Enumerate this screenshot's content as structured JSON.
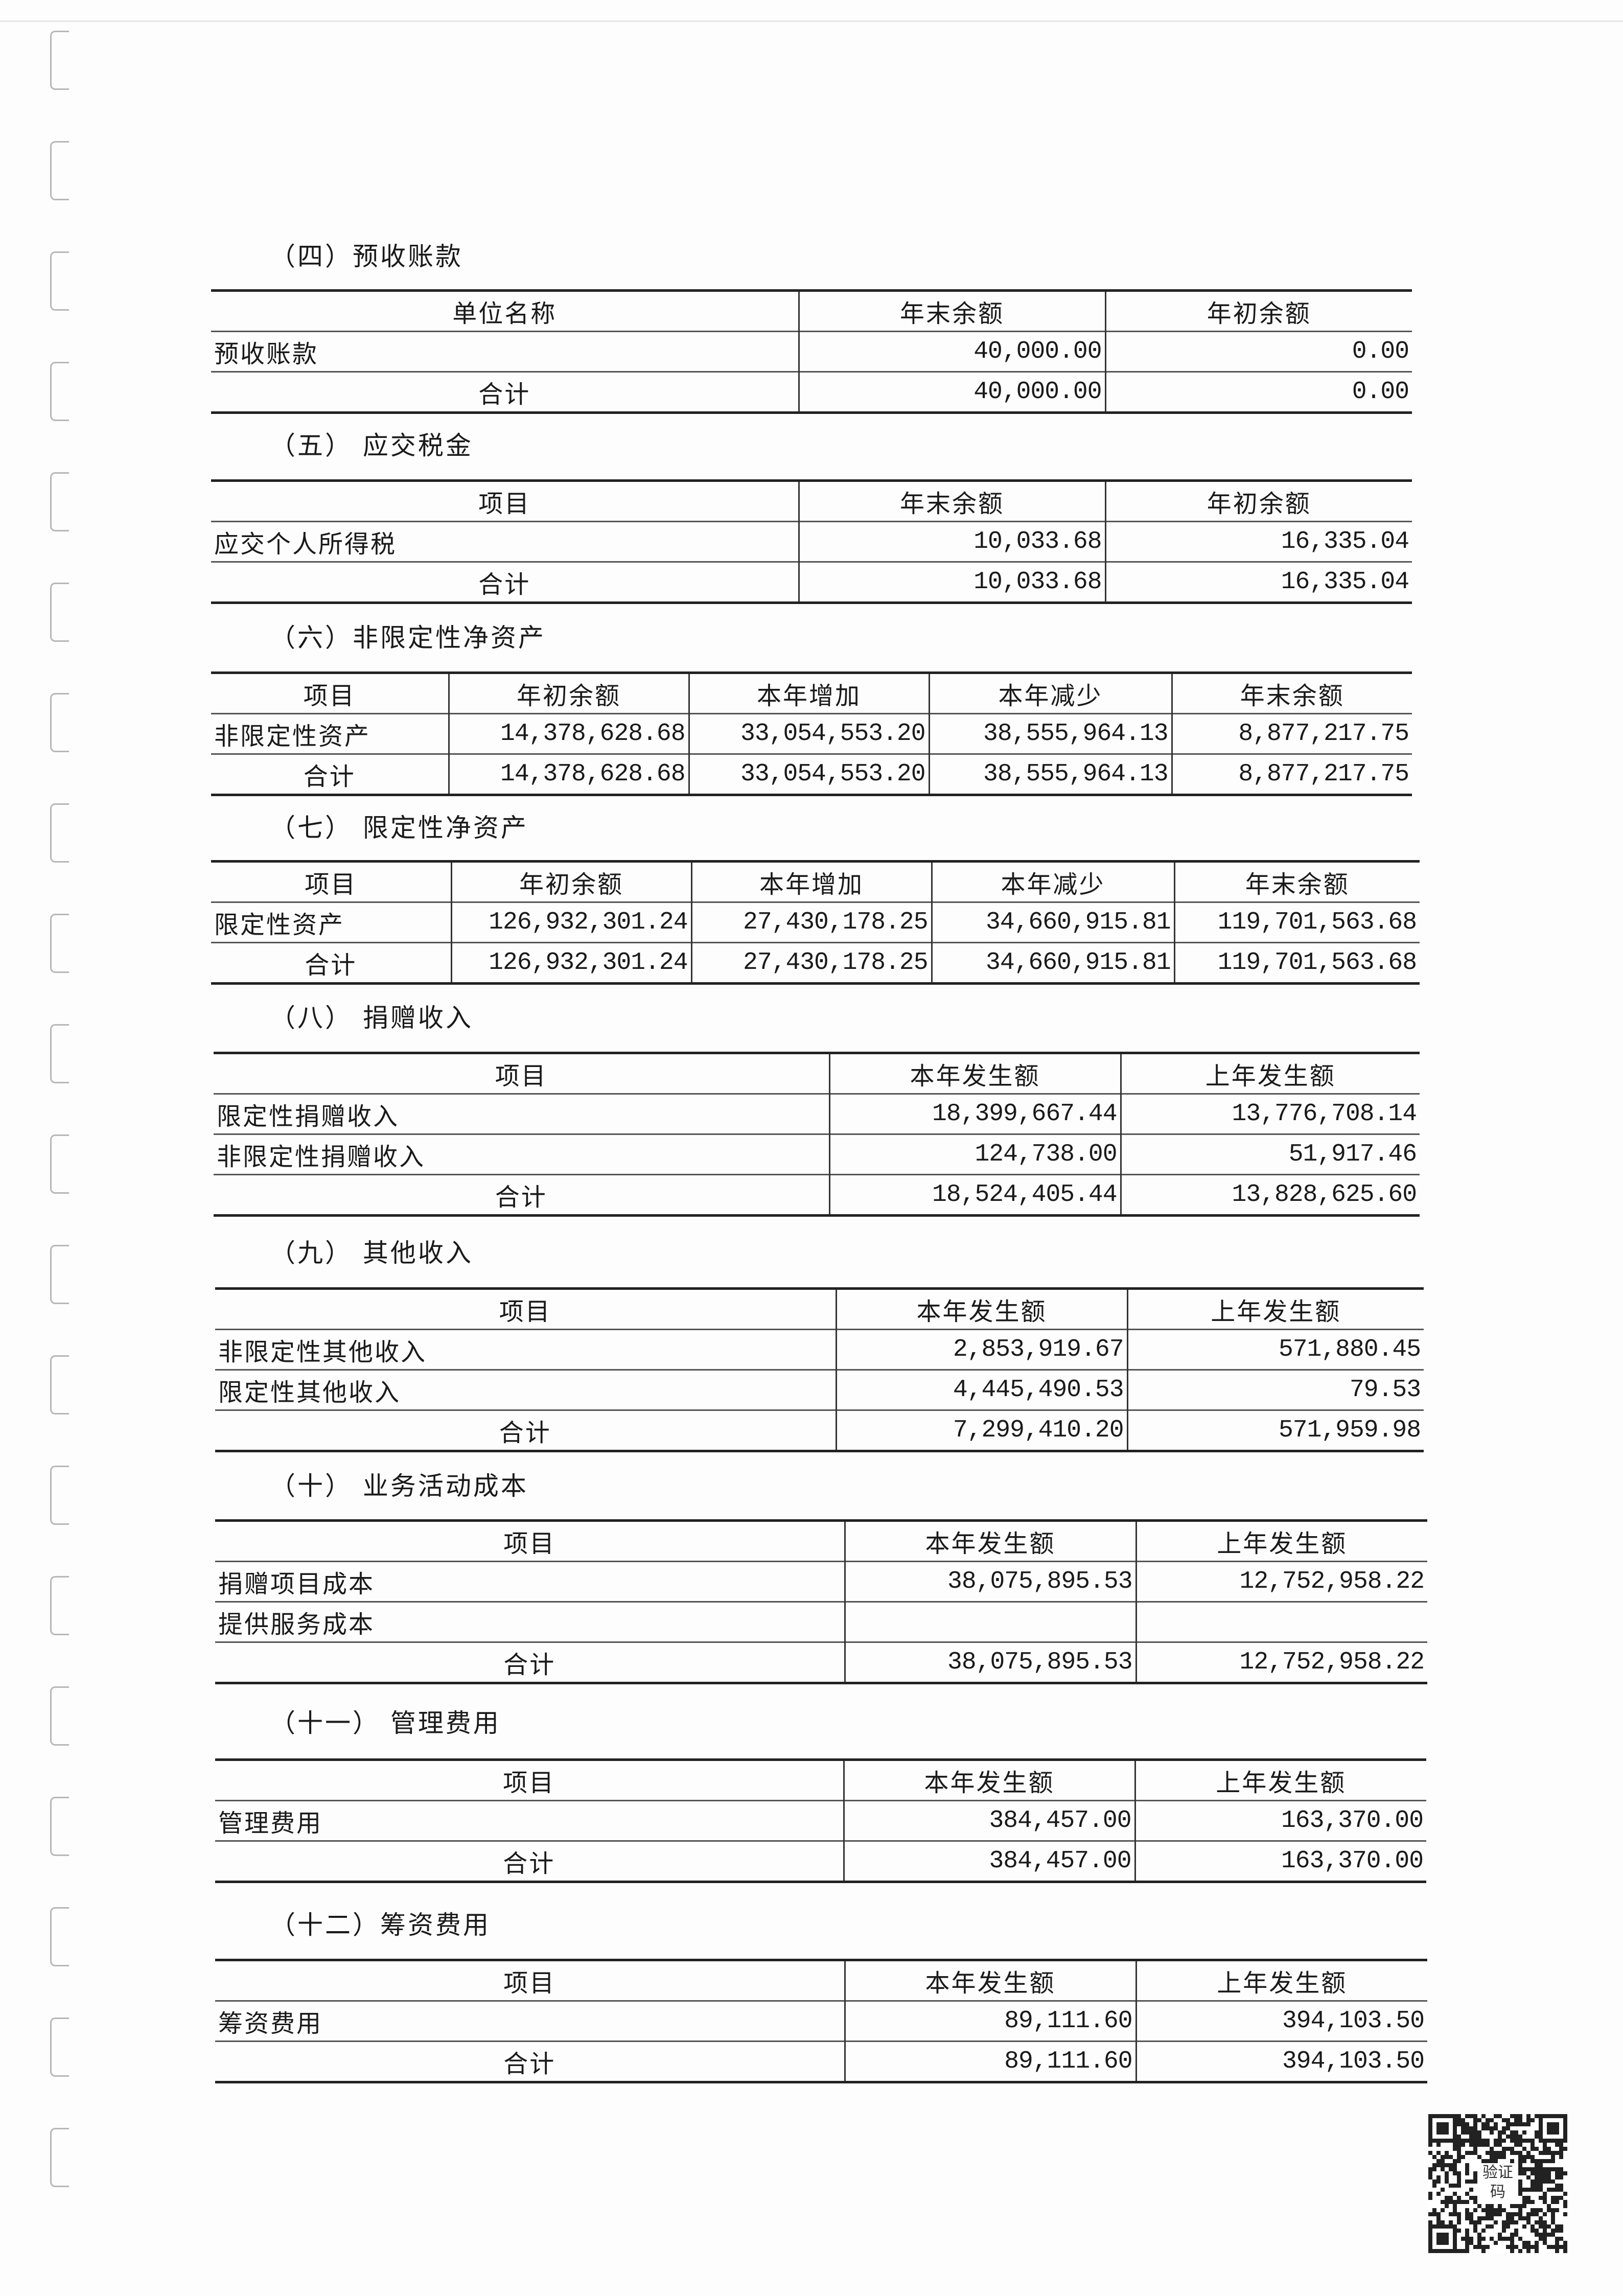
{
  "qr_code": {
    "label": "验证码"
  },
  "sections": [
    {
      "title": "（四）预收账款",
      "header": [
        "单位名称",
        "年末余额",
        "年初余额"
      ],
      "rows": [
        [
          "预收账款",
          "40,000.00",
          "0.00"
        ],
        [
          "合计",
          "40,000.00",
          "0.00"
        ]
      ]
    },
    {
      "title": "（五） 应交税金",
      "header": [
        "项目",
        "年末余额",
        "年初余额"
      ],
      "rows": [
        [
          "应交个人所得税",
          "10,033.68",
          "16,335.04"
        ],
        [
          "合计",
          "10,033.68",
          "16,335.04"
        ]
      ]
    },
    {
      "title": "（六）非限定性净资产",
      "header": [
        "项目",
        "年初余额",
        "本年增加",
        "本年减少",
        "年末余额"
      ],
      "rows": [
        [
          "非限定性资产",
          "14,378,628.68",
          "33,054,553.20",
          "38,555,964.13",
          "8,877,217.75"
        ],
        [
          "合计",
          "14,378,628.68",
          "33,054,553.20",
          "38,555,964.13",
          "8,877,217.75"
        ]
      ]
    },
    {
      "title": "（七） 限定性净资产",
      "header": [
        "项目",
        "年初余额",
        "本年增加",
        "本年减少",
        "年末余额"
      ],
      "rows": [
        [
          "限定性资产",
          "126,932,301.24",
          "27,430,178.25",
          "34,660,915.81",
          "119,701,563.68"
        ],
        [
          "合计",
          "126,932,301.24",
          "27,430,178.25",
          "34,660,915.81",
          "119,701,563.68"
        ]
      ]
    },
    {
      "title": "（八） 捐赠收入",
      "header": [
        "项目",
        "本年发生额",
        "上年发生额"
      ],
      "rows": [
        [
          "限定性捐赠收入",
          "18,399,667.44",
          "13,776,708.14"
        ],
        [
          "非限定性捐赠收入",
          "124,738.00",
          "51,917.46"
        ],
        [
          "合计",
          "18,524,405.44",
          "13,828,625.60"
        ]
      ]
    },
    {
      "title": "（九） 其他收入",
      "header": [
        "项目",
        "本年发生额",
        "上年发生额"
      ],
      "rows": [
        [
          "非限定性其他收入",
          "2,853,919.67",
          "571,880.45"
        ],
        [
          "限定性其他收入",
          "4,445,490.53",
          "79.53"
        ],
        [
          "合计",
          "7,299,410.20",
          "571,959.98"
        ]
      ]
    },
    {
      "title": "（十） 业务活动成本",
      "header": [
        "项目",
        "本年发生额",
        "上年发生额"
      ],
      "rows": [
        [
          "捐赠项目成本",
          "38,075,895.53",
          "12,752,958.22"
        ],
        [
          "提供服务成本",
          "",
          ""
        ],
        [
          "合计",
          "38,075,895.53",
          "12,752,958.22"
        ]
      ]
    },
    {
      "title": "（十一） 管理费用",
      "header": [
        "项目",
        "本年发生额",
        "上年发生额"
      ],
      "rows": [
        [
          "管理费用",
          "384,457.00",
          "163,370.00"
        ],
        [
          "合计",
          "384,457.00",
          "163,370.00"
        ]
      ]
    },
    {
      "title": "（十二）筹资费用",
      "header": [
        "项目",
        "本年发生额",
        "上年发生额"
      ],
      "rows": [
        [
          "筹资费用",
          "89,111.60",
          "394,103.50"
        ],
        [
          "合计",
          "89,111.60",
          "394,103.50"
        ]
      ]
    }
  ]
}
